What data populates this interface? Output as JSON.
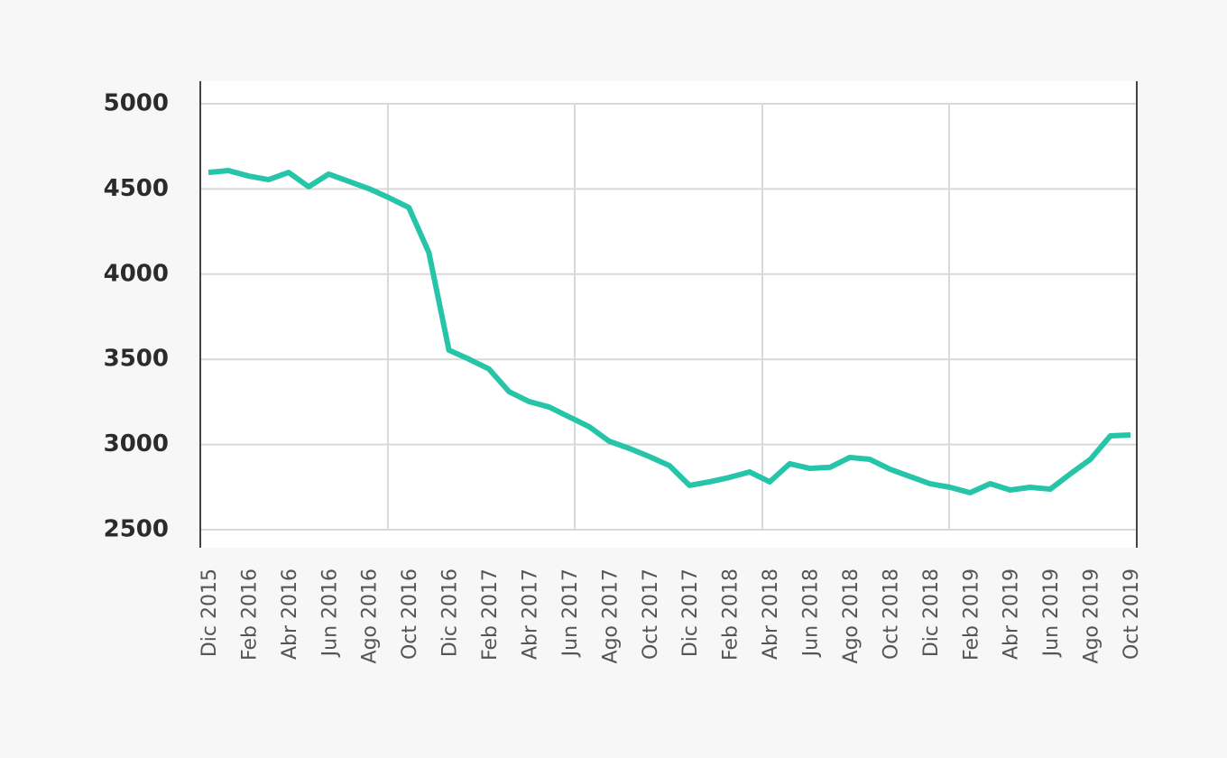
{
  "chart_data": {
    "type": "line",
    "categories": [
      "Dic 2015",
      null,
      "Feb 2016",
      null,
      "Abr 2016",
      null,
      "Jun 2016",
      null,
      "Ago 2016",
      null,
      "Oct 2016",
      null,
      "Dic 2016",
      null,
      "Feb 2017",
      null,
      "Abr 2017",
      null,
      "Jun 2017",
      null,
      "Ago 2017",
      null,
      "Oct 2017",
      null,
      "Dic 2017",
      null,
      "Feb 2018",
      null,
      "Abr 2018",
      null,
      "Jun 2018",
      null,
      "Ago 2018",
      null,
      "Oct 2018",
      null,
      "Dic 2018",
      null,
      "Feb 2019",
      null,
      "Abr 2019",
      null,
      "Jun 2019",
      null,
      "Ago 2019",
      null,
      "Oct 2019"
    ],
    "series": [
      {
        "color": "#26c4a8",
        "values": [
          4597,
          4608,
          4576,
          4555,
          4597,
          4513,
          4587,
          4545,
          4502,
          4449,
          4391,
          4126,
          3554,
          3501,
          3443,
          3310,
          3252,
          3220,
          3162,
          3104,
          3019,
          2977,
          2929,
          2876,
          2760,
          2781,
          2807,
          2839,
          2781,
          2887,
          2860,
          2866,
          2924,
          2913,
          2855,
          2812,
          2770,
          2749,
          2717,
          2770,
          2733,
          2749,
          2738,
          2828,
          2913,
          3051,
          3056
        ]
      }
    ],
    "ylim": [
      2500,
      5000
    ],
    "yticks": [
      2500,
      3000,
      3500,
      4000,
      4500,
      5000
    ],
    "grid": true
  }
}
